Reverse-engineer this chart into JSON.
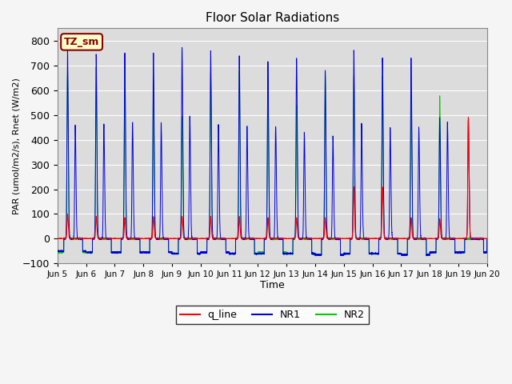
{
  "title": "Floor Solar Radiations",
  "xlabel": "Time",
  "ylabel": "PAR (umol/m2/s), Rnet (W/m2)",
  "ylim": [
    -100,
    850
  ],
  "yticks": [
    -100,
    0,
    100,
    200,
    300,
    400,
    500,
    600,
    700,
    800
  ],
  "bg_color": "#dcdcdc",
  "fig_bg": "#f5f5f5",
  "line_colors": {
    "q_line": "#ff0000",
    "NR1": "#0000dd",
    "NR2": "#00cc00"
  },
  "legend_label": "TZ_sm",
  "legend_bg": "#ffffcc",
  "legend_edge": "#8b0000",
  "x_start": 5.0,
  "x_end": 20.0,
  "xtick_positions": [
    5,
    6,
    7,
    8,
    9,
    10,
    11,
    12,
    13,
    14,
    15,
    16,
    17,
    18,
    19,
    20
  ],
  "xtick_labels": [
    "Jun 5",
    "Jun 6",
    "Jun 7",
    "Jun 8",
    "Jun 9",
    "Jun 10",
    "Jun 11",
    "Jun 12",
    "Jun 13",
    "Jun 14",
    "Jun 15",
    "Jun 16",
    "Jun 17",
    "Jun 18",
    "Jun 19",
    "Jun 20"
  ],
  "days": 15,
  "NR1_peaks": [
    760,
    745,
    750,
    750,
    770,
    760,
    740,
    715,
    730,
    680,
    760,
    730,
    730,
    490,
    480
  ],
  "NR1_mid_peaks": [
    455,
    465,
    470,
    470,
    495,
    460,
    455,
    455,
    430,
    415,
    465,
    450,
    450,
    470,
    0
  ],
  "NR2_peaks": [
    670,
    695,
    695,
    645,
    495,
    670,
    675,
    655,
    540,
    675,
    660,
    660,
    580,
    580,
    0
  ],
  "q_peaks": [
    100,
    90,
    85,
    90,
    90,
    90,
    90,
    85,
    85,
    85,
    210,
    210,
    85,
    80,
    490
  ],
  "NR1_troughs": [
    -50,
    -55,
    -55,
    -55,
    -60,
    -55,
    -60,
    -60,
    -60,
    -65,
    -60,
    -60,
    -65,
    -55,
    -55
  ],
  "NR2_troughs": [
    -55,
    -55,
    -55,
    -55,
    -60,
    -55,
    -60,
    -55,
    -60,
    -65,
    -60,
    -60,
    -65,
    -55,
    -55
  ]
}
